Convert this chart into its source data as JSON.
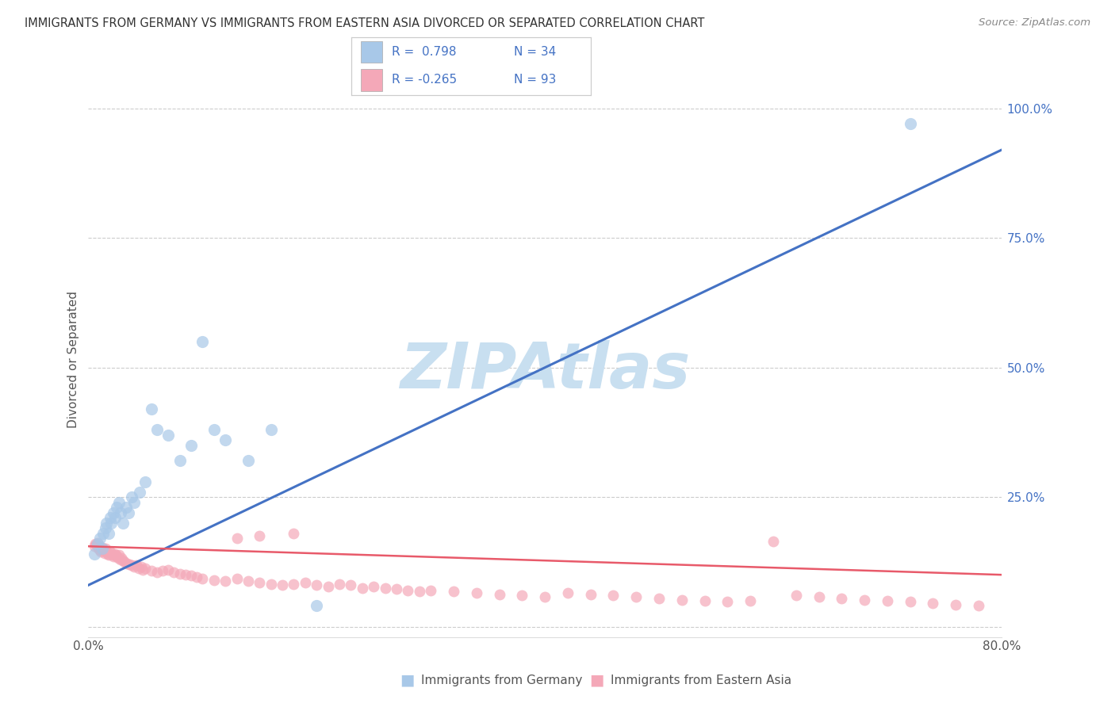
{
  "title": "IMMIGRANTS FROM GERMANY VS IMMIGRANTS FROM EASTERN ASIA DIVORCED OR SEPARATED CORRELATION CHART",
  "source": "Source: ZipAtlas.com",
  "ylabel": "Divorced or Separated",
  "legend_labels": [
    "Immigrants from Germany",
    "Immigrants from Eastern Asia"
  ],
  "r_germany": 0.798,
  "n_germany": 34,
  "r_eastern_asia": -0.265,
  "n_eastern_asia": 93,
  "color_germany": "#a8c8e8",
  "color_eastern_asia": "#f4a8b8",
  "color_germany_line": "#4472c4",
  "color_eastern_asia_line": "#e85a6a",
  "color_legend_r": "#4472c4",
  "xlim": [
    0.0,
    0.8
  ],
  "ylim": [
    -0.02,
    1.05
  ],
  "xticks": [
    0.0,
    0.1,
    0.2,
    0.3,
    0.4,
    0.5,
    0.6,
    0.7,
    0.8
  ],
  "xtick_labels": [
    "0.0%",
    "",
    "",
    "",
    "",
    "",
    "",
    "",
    "80.0%"
  ],
  "yticks_right": [
    0.0,
    0.25,
    0.5,
    0.75,
    1.0
  ],
  "ytick_labels_right": [
    "",
    "25.0%",
    "50.0%",
    "75.0%",
    "100.0%"
  ],
  "watermark": "ZIPAtlas",
  "watermark_color": "#c8dff0",
  "background_color": "#ffffff",
  "germany_x": [
    0.005,
    0.008,
    0.01,
    0.012,
    0.013,
    0.015,
    0.016,
    0.018,
    0.019,
    0.02,
    0.022,
    0.023,
    0.025,
    0.027,
    0.028,
    0.03,
    0.033,
    0.035,
    0.038,
    0.04,
    0.045,
    0.05,
    0.055,
    0.06,
    0.07,
    0.08,
    0.09,
    0.1,
    0.11,
    0.12,
    0.14,
    0.16,
    0.2,
    0.72
  ],
  "germany_y": [
    0.14,
    0.16,
    0.17,
    0.15,
    0.18,
    0.19,
    0.2,
    0.18,
    0.21,
    0.2,
    0.22,
    0.21,
    0.23,
    0.24,
    0.22,
    0.2,
    0.23,
    0.22,
    0.25,
    0.24,
    0.26,
    0.28,
    0.42,
    0.38,
    0.37,
    0.32,
    0.35,
    0.55,
    0.38,
    0.36,
    0.32,
    0.38,
    0.04,
    0.97
  ],
  "eastern_asia_x": [
    0.005,
    0.006,
    0.007,
    0.008,
    0.009,
    0.01,
    0.011,
    0.012,
    0.013,
    0.014,
    0.015,
    0.016,
    0.017,
    0.018,
    0.019,
    0.02,
    0.021,
    0.022,
    0.023,
    0.024,
    0.025,
    0.026,
    0.027,
    0.028,
    0.029,
    0.03,
    0.032,
    0.034,
    0.036,
    0.038,
    0.04,
    0.042,
    0.044,
    0.046,
    0.048,
    0.05,
    0.055,
    0.06,
    0.065,
    0.07,
    0.075,
    0.08,
    0.085,
    0.09,
    0.095,
    0.1,
    0.11,
    0.12,
    0.13,
    0.14,
    0.15,
    0.16,
    0.17,
    0.18,
    0.19,
    0.2,
    0.21,
    0.22,
    0.23,
    0.24,
    0.25,
    0.26,
    0.27,
    0.28,
    0.29,
    0.3,
    0.32,
    0.34,
    0.36,
    0.38,
    0.4,
    0.42,
    0.44,
    0.46,
    0.48,
    0.5,
    0.52,
    0.54,
    0.56,
    0.58,
    0.6,
    0.62,
    0.64,
    0.66,
    0.68,
    0.7,
    0.72,
    0.74,
    0.76,
    0.78,
    0.13,
    0.15,
    0.18
  ],
  "eastern_asia_y": [
    0.155,
    0.16,
    0.158,
    0.162,
    0.15,
    0.148,
    0.145,
    0.152,
    0.148,
    0.142,
    0.15,
    0.145,
    0.14,
    0.138,
    0.145,
    0.142,
    0.138,
    0.135,
    0.14,
    0.138,
    0.135,
    0.132,
    0.138,
    0.13,
    0.132,
    0.128,
    0.125,
    0.122,
    0.12,
    0.118,
    0.115,
    0.118,
    0.112,
    0.115,
    0.11,
    0.112,
    0.108,
    0.105,
    0.108,
    0.11,
    0.105,
    0.102,
    0.1,
    0.098,
    0.095,
    0.092,
    0.09,
    0.088,
    0.092,
    0.088,
    0.085,
    0.082,
    0.08,
    0.082,
    0.085,
    0.08,
    0.078,
    0.082,
    0.08,
    0.075,
    0.078,
    0.075,
    0.072,
    0.07,
    0.068,
    0.07,
    0.068,
    0.065,
    0.062,
    0.06,
    0.058,
    0.065,
    0.062,
    0.06,
    0.058,
    0.055,
    0.052,
    0.05,
    0.048,
    0.05,
    0.165,
    0.06,
    0.058,
    0.055,
    0.052,
    0.05,
    0.048,
    0.045,
    0.042,
    0.04,
    0.17,
    0.175,
    0.18
  ]
}
